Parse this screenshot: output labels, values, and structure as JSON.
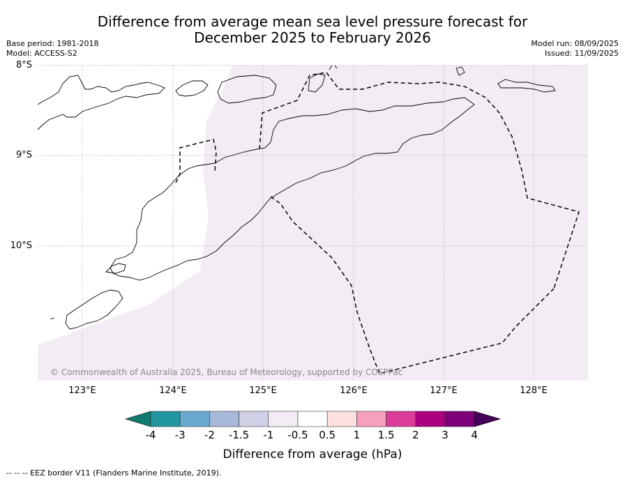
{
  "header": {
    "title_line1": "Difference from average mean sea level pressure forecast for",
    "title_line2": "December 2025 to February 2026",
    "base_period": "Base period: 1981-2018",
    "model": "Model: ACCESS-S2",
    "model_run": "Model run: 08/09/2025",
    "issued": "Issued: 11/09/2025"
  },
  "map": {
    "lat_labels": [
      "8°S",
      "9°S",
      "10°S"
    ],
    "lon_labels": [
      "123°E",
      "124°E",
      "125°E",
      "126°E",
      "127°E",
      "128°E"
    ],
    "copyright": "© Commonwealth of Australia 2025, Bureau of Meteorology, supported by COSPPac",
    "shaded_category": "-0.5 to 0.5",
    "shade_color": "#f3ecf5"
  },
  "colorbar": {
    "label": "Difference from average (hPa)",
    "ticks": [
      "-4",
      "-3",
      "-2",
      "-1.5",
      "-1",
      "-0.5",
      "0.5",
      "1",
      "1.5",
      "2",
      "3",
      "4"
    ],
    "colors": [
      "#117a6f",
      "#2196a0",
      "#6aa8d0",
      "#a8b8da",
      "#d0d0e6",
      "#f3ecf5",
      "#ffffff",
      "#fde0e0",
      "#f7a0bc",
      "#dc3d9a",
      "#ac0080",
      "#7d0078",
      "#450059"
    ]
  },
  "footnote": "--  --  -- EEZ border V11 (Flanders Marine Institute, 2019)."
}
